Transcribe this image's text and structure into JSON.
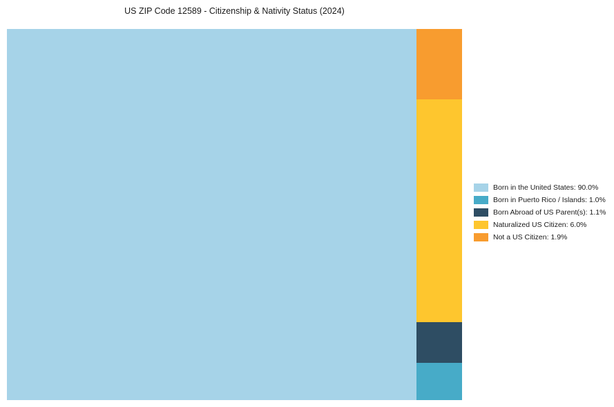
{
  "chart_data": {
    "type": "treemap",
    "title": "US ZIP Code 12589 - Citizenship & Nativity Status (2024)",
    "categories": [
      "Born in the United States",
      "Born in Puerto Rico / Islands",
      "Born Abroad of US Parent(s)",
      "Naturalized US Citizen",
      "Not a US Citizen"
    ],
    "values": [
      90.0,
      1.0,
      1.1,
      6.0,
      1.9
    ],
    "colors": [
      "#a6d3e8",
      "#47abc8",
      "#2e4d63",
      "#fec62e",
      "#f89c2f"
    ],
    "legend": [
      {
        "label": "Born in the United States: 90.0%",
        "color": "#a6d3e8"
      },
      {
        "label": "Born in Puerto Rico / Islands: 1.0%",
        "color": "#47abc8"
      },
      {
        "label": "Born Abroad of US Parent(s): 1.1%",
        "color": "#2e4d63"
      },
      {
        "label": "Naturalized US Citizen: 6.0%",
        "color": "#fec62e"
      },
      {
        "label": "Not a US Citizen: 1.9%",
        "color": "#f89c2f"
      }
    ],
    "layout": {
      "main_category_index": 0,
      "side_column_order_top_to_bottom": [
        4,
        3,
        2,
        1
      ],
      "legend_position": "right",
      "grid": false
    }
  }
}
